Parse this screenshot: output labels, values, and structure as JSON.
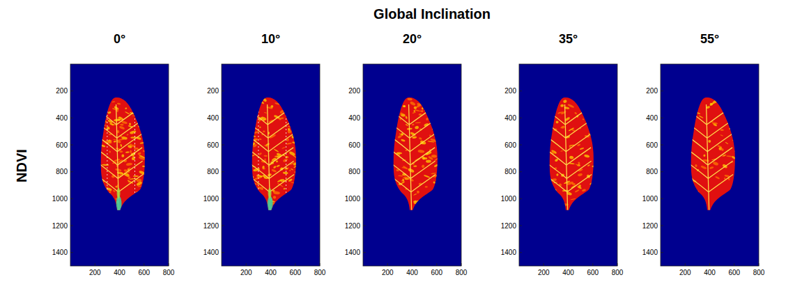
{
  "title": "Global Inclination",
  "row_label": "NDVI",
  "chart_data": [
    {
      "type": "image",
      "title": "0°",
      "xlim": [
        0,
        800
      ],
      "ylim": [
        0,
        1500
      ],
      "xticks": [
        200,
        400,
        600,
        800
      ],
      "yticks": [
        200,
        400,
        600,
        800,
        1000,
        1200,
        1400
      ]
    },
    {
      "type": "image",
      "title": "10°",
      "xlim": [
        0,
        800
      ],
      "ylim": [
        0,
        1500
      ],
      "xticks": [
        200,
        400,
        600,
        800
      ],
      "yticks": [
        200,
        400,
        600,
        800,
        1000,
        1200,
        1400
      ]
    },
    {
      "type": "image",
      "title": "20°",
      "xlim": [
        0,
        800
      ],
      "ylim": [
        0,
        1500
      ],
      "xticks": [
        200,
        400,
        600,
        800
      ],
      "yticks": [
        200,
        400,
        600,
        800,
        1000,
        1200,
        1400
      ]
    },
    {
      "type": "image",
      "title": "35°",
      "xlim": [
        0,
        800
      ],
      "ylim": [
        0,
        1500
      ],
      "xticks": [
        200,
        400,
        600,
        800
      ],
      "yticks": [
        200,
        400,
        600,
        800,
        1000,
        1200,
        1400
      ]
    },
    {
      "type": "image",
      "title": "55°",
      "xlim": [
        0,
        800
      ],
      "ylim": [
        0,
        1500
      ],
      "xticks": [
        200,
        400,
        600,
        800
      ],
      "yticks": [
        200,
        400,
        600,
        800,
        1000,
        1200,
        1400
      ]
    }
  ]
}
